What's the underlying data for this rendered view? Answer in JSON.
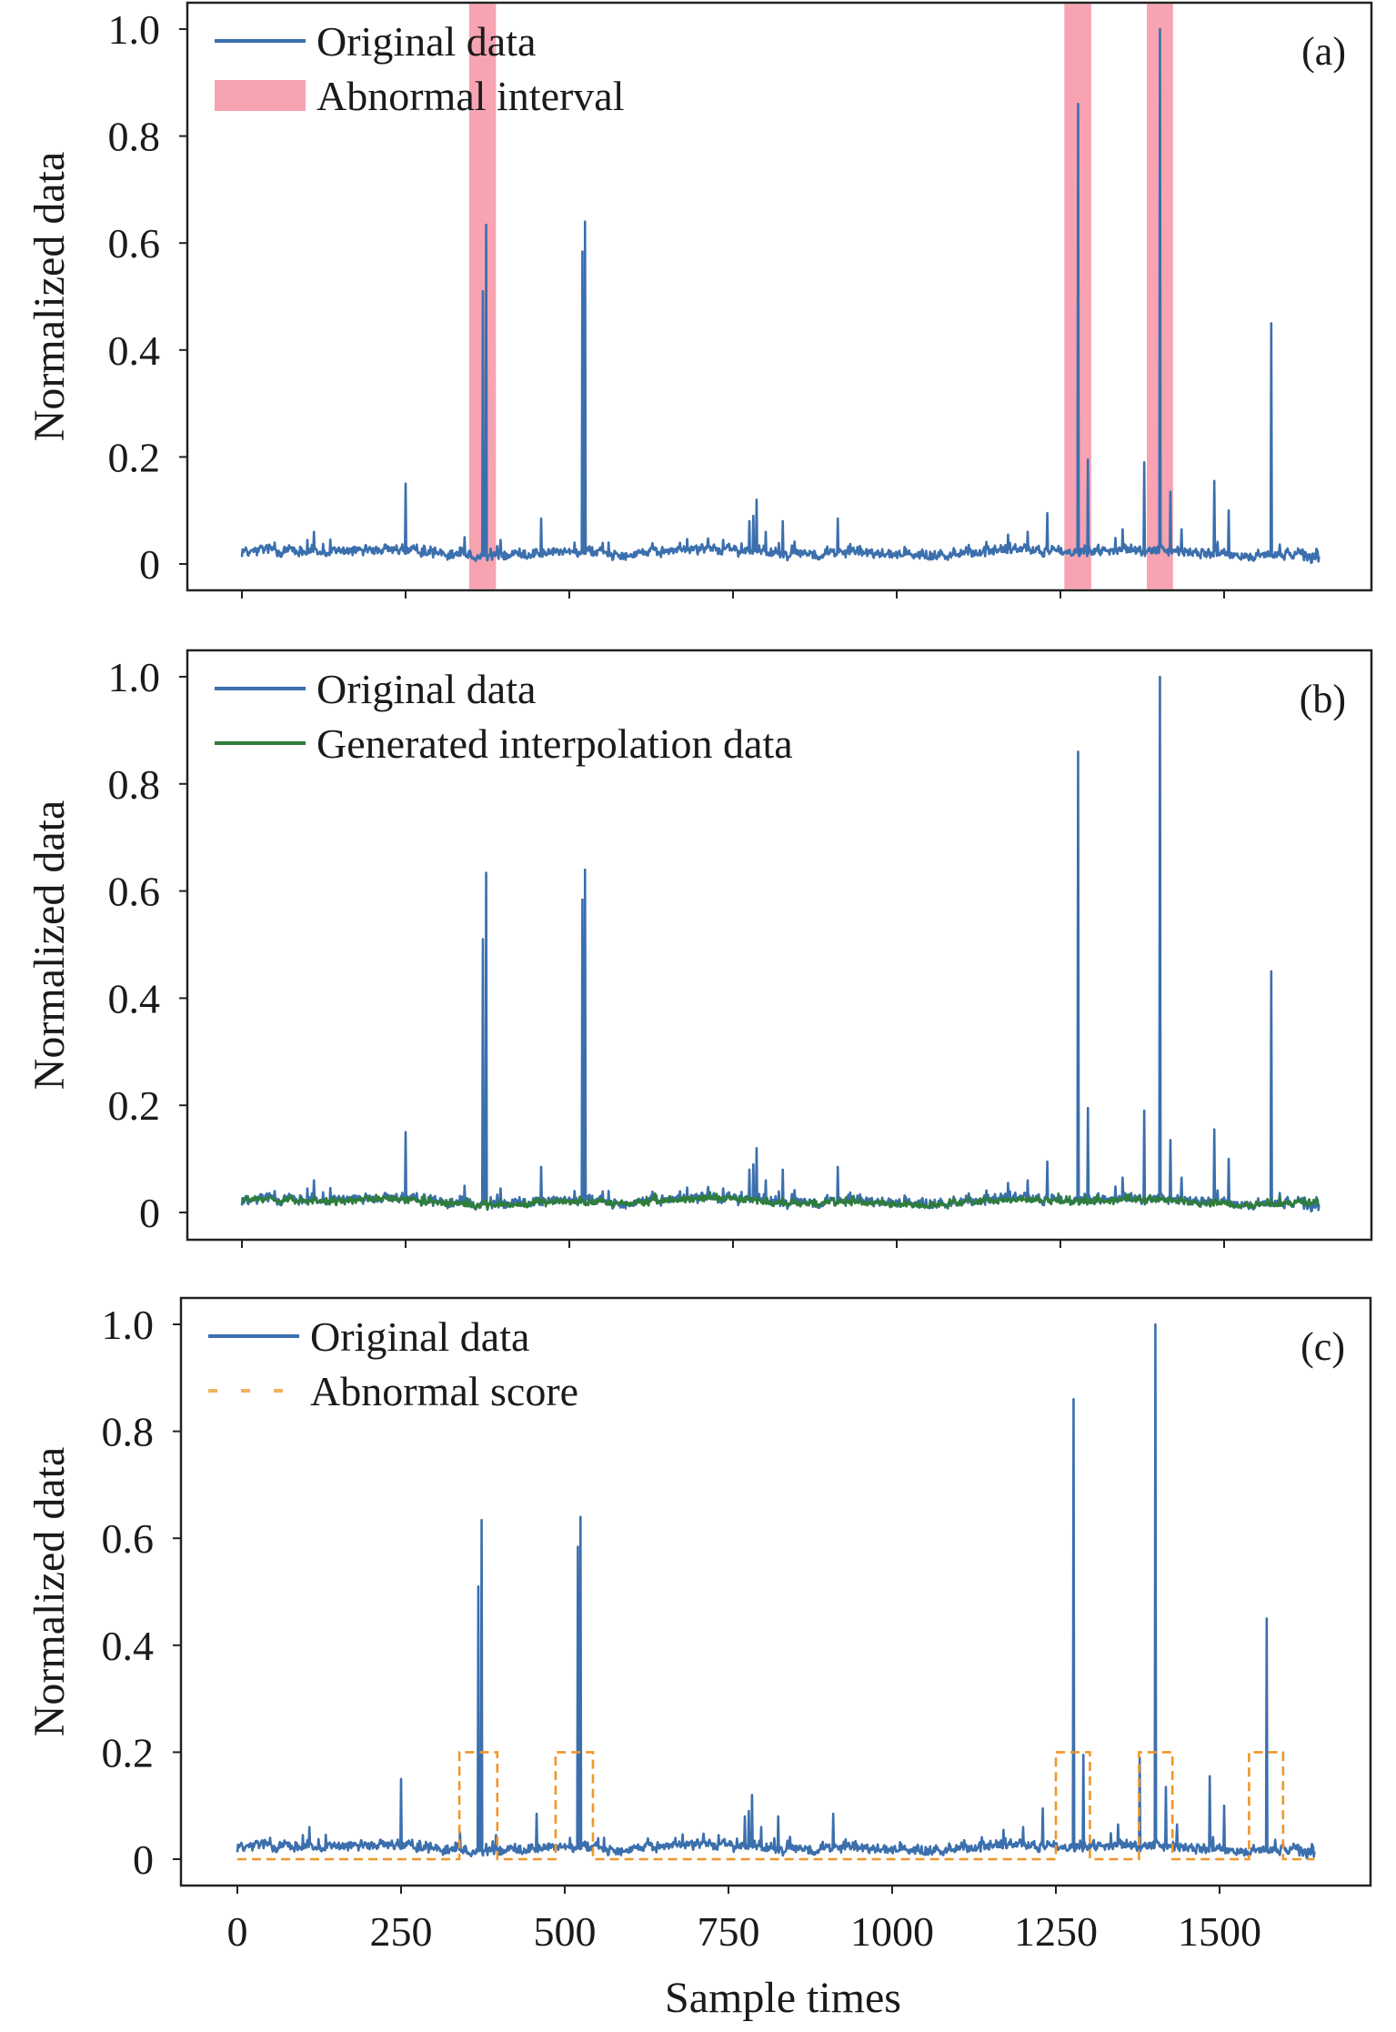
{
  "colors": {
    "original": "#3b6fad",
    "generated": "#2e7d3a",
    "abnormal_interval": "#f7a3b2",
    "abnormal_score": "#f0962a",
    "axis": "#222222"
  },
  "chart_data": [
    {
      "type": "line",
      "panel_label": "(a)",
      "xlabel": "",
      "ylabel": "Normalized data",
      "xlim": [
        -60,
        1750
      ],
      "ylim": [
        -0.05,
        1.05
      ],
      "xticks": [
        0,
        250,
        500,
        750,
        1000,
        1250,
        1500,
        1750
      ],
      "xtick_labels_visible": false,
      "yticks": [
        0,
        0.2,
        0.4,
        0.6,
        0.8,
        1.0
      ],
      "ytick_labels": [
        "0",
        "0.2",
        "0.4",
        "0.6",
        "0.8",
        "1.0"
      ],
      "legend": {
        "placement": "top-left",
        "entries": [
          "Original data",
          "Abnormal interval"
        ]
      },
      "series": [
        {
          "name": "Original data",
          "kind": "line",
          "x_range": [
            0,
            1645
          ],
          "baseline": {
            "mean": 0.022,
            "amplitude": 0.012
          },
          "spikes": [
            [
              50,
              0.04
            ],
            [
              100,
              0.045
            ],
            [
              110,
              0.06
            ],
            [
              250,
              0.15
            ],
            [
              340,
              0.05
            ],
            [
              368,
              0.51
            ],
            [
              373,
              0.634
            ],
            [
              395,
              0.045
            ],
            [
              457,
              0.085
            ],
            [
              520,
              0.584
            ],
            [
              524,
              0.64
            ],
            [
              560,
              0.04
            ],
            [
              735,
              0.045
            ],
            [
              775,
              0.08
            ],
            [
              781,
              0.09
            ],
            [
              786,
              0.12
            ],
            [
              800,
              0.06
            ],
            [
              826,
              0.08
            ],
            [
              910,
              0.085
            ],
            [
              1170,
              0.055
            ],
            [
              1200,
              0.06
            ],
            [
              1230,
              0.095
            ],
            [
              1277,
              0.86
            ],
            [
              1292,
              0.195
            ],
            [
              1345,
              0.065
            ],
            [
              1378,
              0.19
            ],
            [
              1402,
              1.0
            ],
            [
              1418,
              0.135
            ],
            [
              1435,
              0.065
            ],
            [
              1485,
              0.155
            ],
            [
              1507,
              0.1
            ],
            [
              1572,
              0.45
            ]
          ]
        }
      ],
      "intervals": [
        {
          "name": "Abnormal interval",
          "start": 347,
          "end": 388
        },
        {
          "name": "Abnormal interval",
          "start": 1256,
          "end": 1297
        },
        {
          "name": "Abnormal interval",
          "start": 1382,
          "end": 1422
        }
      ]
    },
    {
      "type": "line",
      "panel_label": "(b)",
      "xlabel": "",
      "ylabel": "Normalized data",
      "xlim": [
        -60,
        1750
      ],
      "ylim": [
        -0.05,
        1.05
      ],
      "xticks": [
        0,
        250,
        500,
        750,
        1000,
        1250,
        1500,
        1750
      ],
      "xtick_labels_visible": false,
      "yticks": [
        0,
        0.2,
        0.4,
        0.6,
        0.8,
        1.0
      ],
      "ytick_labels": [
        "0",
        "0.2",
        "0.4",
        "0.6",
        "0.8",
        "1.0"
      ],
      "legend": {
        "placement": "top-left",
        "entries": [
          "Original data",
          "Generated interpolation data"
        ]
      },
      "series": [
        {
          "name": "Original data",
          "kind": "line",
          "same_as": "panel (a) Original data"
        },
        {
          "name": "Generated interpolation data",
          "kind": "line",
          "x_range": [
            0,
            1645
          ],
          "baseline": {
            "mean": 0.018,
            "amplitude": 0.01
          }
        }
      ]
    },
    {
      "type": "line",
      "panel_label": "(c)",
      "xlabel": "Sample times",
      "ylabel": "Normalized data",
      "xlim": [
        -60,
        1750
      ],
      "ylim": [
        -0.05,
        1.05
      ],
      "xticks": [
        0,
        250,
        500,
        750,
        1000,
        1250,
        1500
      ],
      "xtick_labels": [
        "0",
        "250",
        "500",
        "750",
        "1000",
        "1250",
        "1500"
      ],
      "yticks": [
        0,
        0.2,
        0.4,
        0.6,
        0.8,
        1.0
      ],
      "ytick_labels": [
        "0",
        "0.2",
        "0.4",
        "0.6",
        "0.8",
        "1.0"
      ],
      "legend": {
        "placement": "top-left",
        "entries": [
          "Original data",
          "Abnormal score"
        ]
      },
      "series": [
        {
          "name": "Original data",
          "kind": "line",
          "same_as": "panel (a) Original data"
        },
        {
          "name": "Abnormal score",
          "kind": "dashed-step",
          "x_range": [
            0,
            1645
          ],
          "low": 0,
          "high": 0.2,
          "high_intervals": [
            [
              339,
              397
            ],
            [
              486,
              543
            ],
            [
              1250,
              1302
            ],
            [
              1377,
              1428
            ],
            [
              1545,
              1597
            ]
          ]
        }
      ]
    }
  ]
}
